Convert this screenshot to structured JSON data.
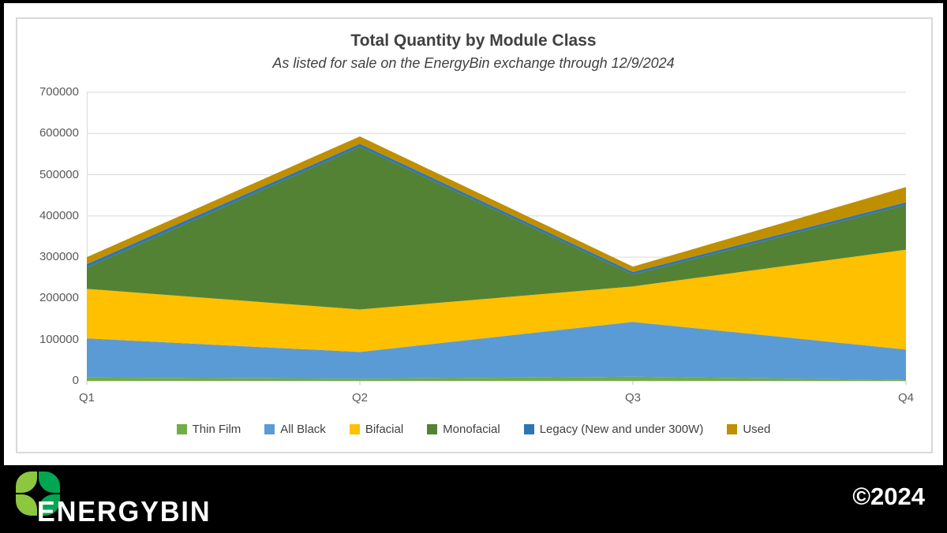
{
  "chart": {
    "title": "Total Quantity by Module Class",
    "subtitle": "As listed for sale on the EnergyBin exchange through 12/9/2024"
  },
  "chart_data": {
    "type": "area",
    "stacked": true,
    "title": "Total Quantity by Module Class",
    "subtitle": "As listed for sale on the EnergyBin exchange through 12/9/2024",
    "categories": [
      "Q1",
      "Q2",
      "Q3",
      "Q4"
    ],
    "series": [
      {
        "name": "Thin Film",
        "color": "#70AD47",
        "values": [
          8000,
          5000,
          10000,
          2000
        ]
      },
      {
        "name": "All Black",
        "color": "#5B9BD5",
        "values": [
          95000,
          65000,
          133000,
          74000
        ]
      },
      {
        "name": "Bifacial",
        "color": "#FFC000",
        "values": [
          120000,
          103000,
          86000,
          242000
        ]
      },
      {
        "name": "Monofacial",
        "color": "#548235",
        "values": [
          52000,
          395000,
          29000,
          109000
        ]
      },
      {
        "name": "Legacy (New and under 300W)",
        "color": "#2E75B6",
        "values": [
          8000,
          7000,
          6000,
          6000
        ]
      },
      {
        "name": "Used",
        "color": "#BF8F00",
        "values": [
          17000,
          18000,
          13000,
          37000
        ]
      }
    ],
    "ylim": [
      0,
      700000
    ],
    "ytick_interval": 100000,
    "ytick_labels": [
      "700000",
      "600000",
      "500000",
      "400000",
      "300000",
      "200000",
      "100000",
      "0"
    ],
    "grid": true,
    "gridline_color": "#d9d9d9",
    "axis_line_color": "#bfbfbf",
    "legend_position": "bottom"
  },
  "footer": {
    "brand": "ENERGYBIN",
    "copyright": "©2024",
    "leaf_color_light": "#8DC63F",
    "leaf_color_dark": "#00A651"
  }
}
